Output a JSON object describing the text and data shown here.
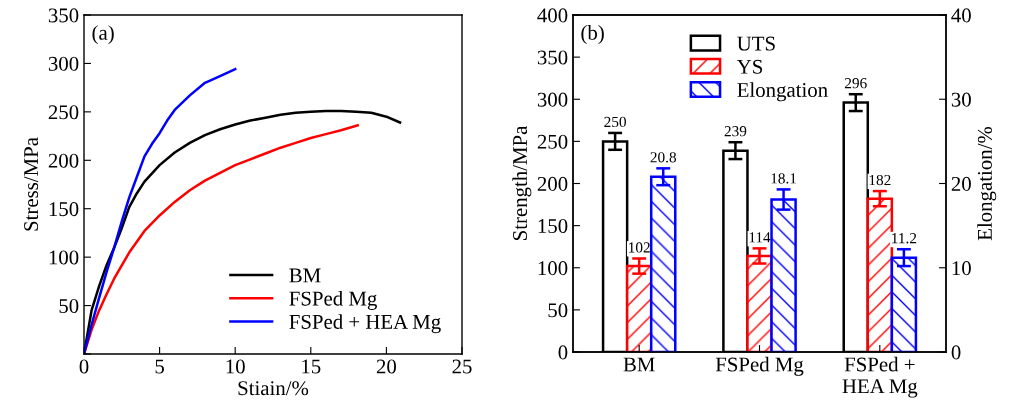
{
  "chart_data": [
    {
      "type": "line",
      "xlabel": "Stiain/%",
      "ylabel": "Stress/MPa",
      "annotations": [
        "(a)"
      ],
      "xlim": [
        0,
        25
      ],
      "ylim": [
        0,
        350
      ],
      "xticks": [
        0,
        5,
        10,
        15,
        20,
        25
      ],
      "yticks": [
        {
          "value": 0,
          "label": null
        },
        50,
        100,
        150,
        200,
        250,
        300,
        350
      ],
      "grid": false,
      "legend": "bottom right",
      "marker": "none",
      "line_style": "solid",
      "series": [
        {
          "name": "BM",
          "color": "#000000",
          "x": [
            0,
            0.5,
            1,
            1.5,
            2,
            2.5,
            3,
            3.5,
            4,
            5,
            6,
            7,
            8,
            9,
            10,
            11,
            12,
            13,
            14,
            15,
            16,
            17,
            18,
            19,
            20,
            20.9
          ],
          "values": [
            0,
            45,
            70,
            92,
            110,
            130,
            152,
            166,
            178,
            195,
            208,
            218,
            226,
            232,
            237,
            241,
            244,
            247,
            249,
            250,
            251,
            251,
            250,
            249,
            245,
            239
          ]
        },
        {
          "name": "FSPed Mg",
          "color": "#ff0000",
          "x": [
            0,
            0.5,
            1,
            1.5,
            2,
            3,
            4,
            5,
            6,
            7,
            8,
            9,
            10,
            11,
            12,
            13,
            14,
            15,
            16,
            17,
            18.1
          ],
          "values": [
            0,
            25,
            45,
            62,
            78,
            105,
            127,
            143,
            157,
            169,
            179,
            187,
            195,
            201,
            207,
            213,
            218,
            223,
            227,
            231,
            236
          ]
        },
        {
          "name": "FSPed + HEA Mg",
          "color": "#0000ff",
          "x": [
            0,
            0.5,
            1,
            1.5,
            2,
            2.5,
            3,
            3.5,
            4,
            4.5,
            5,
            5.5,
            6,
            7,
            8,
            9,
            10
          ],
          "values": [
            0,
            30,
            58,
            85,
            110,
            137,
            162,
            183,
            204,
            217,
            228,
            241,
            252,
            267,
            280,
            287,
            294
          ]
        }
      ]
    },
    {
      "type": "bar",
      "ylabel": "Strength/MPa",
      "y2label": "Elongation/%",
      "annotations": [
        "(b)"
      ],
      "categories": [
        "BM",
        "FSPed Mg",
        "FSPed +\nHEA Mg"
      ],
      "ylim": [
        0,
        400
      ],
      "yticks": [
        0,
        50,
        100,
        150,
        200,
        250,
        300,
        350,
        400
      ],
      "y2lim": [
        0,
        40
      ],
      "y2ticks": [
        0,
        10,
        20,
        30,
        40
      ],
      "grid": false,
      "legend": "top",
      "data_labels": true,
      "series": [
        {
          "name": "UTS",
          "color": "#000000",
          "values": [
            250,
            239,
            296
          ],
          "errors": [
            10,
            10,
            10
          ]
        },
        {
          "name": "YS",
          "color": "#ff0000",
          "values": [
            102,
            114,
            182
          ],
          "errors": [
            9,
            9,
            9
          ]
        },
        {
          "name": "Elongation",
          "color": "#0000ff",
          "axis": "y2",
          "values": [
            20.8,
            18.1,
            11.2
          ],
          "errors": [
            1,
            1.2,
            1
          ]
        }
      ]
    }
  ]
}
